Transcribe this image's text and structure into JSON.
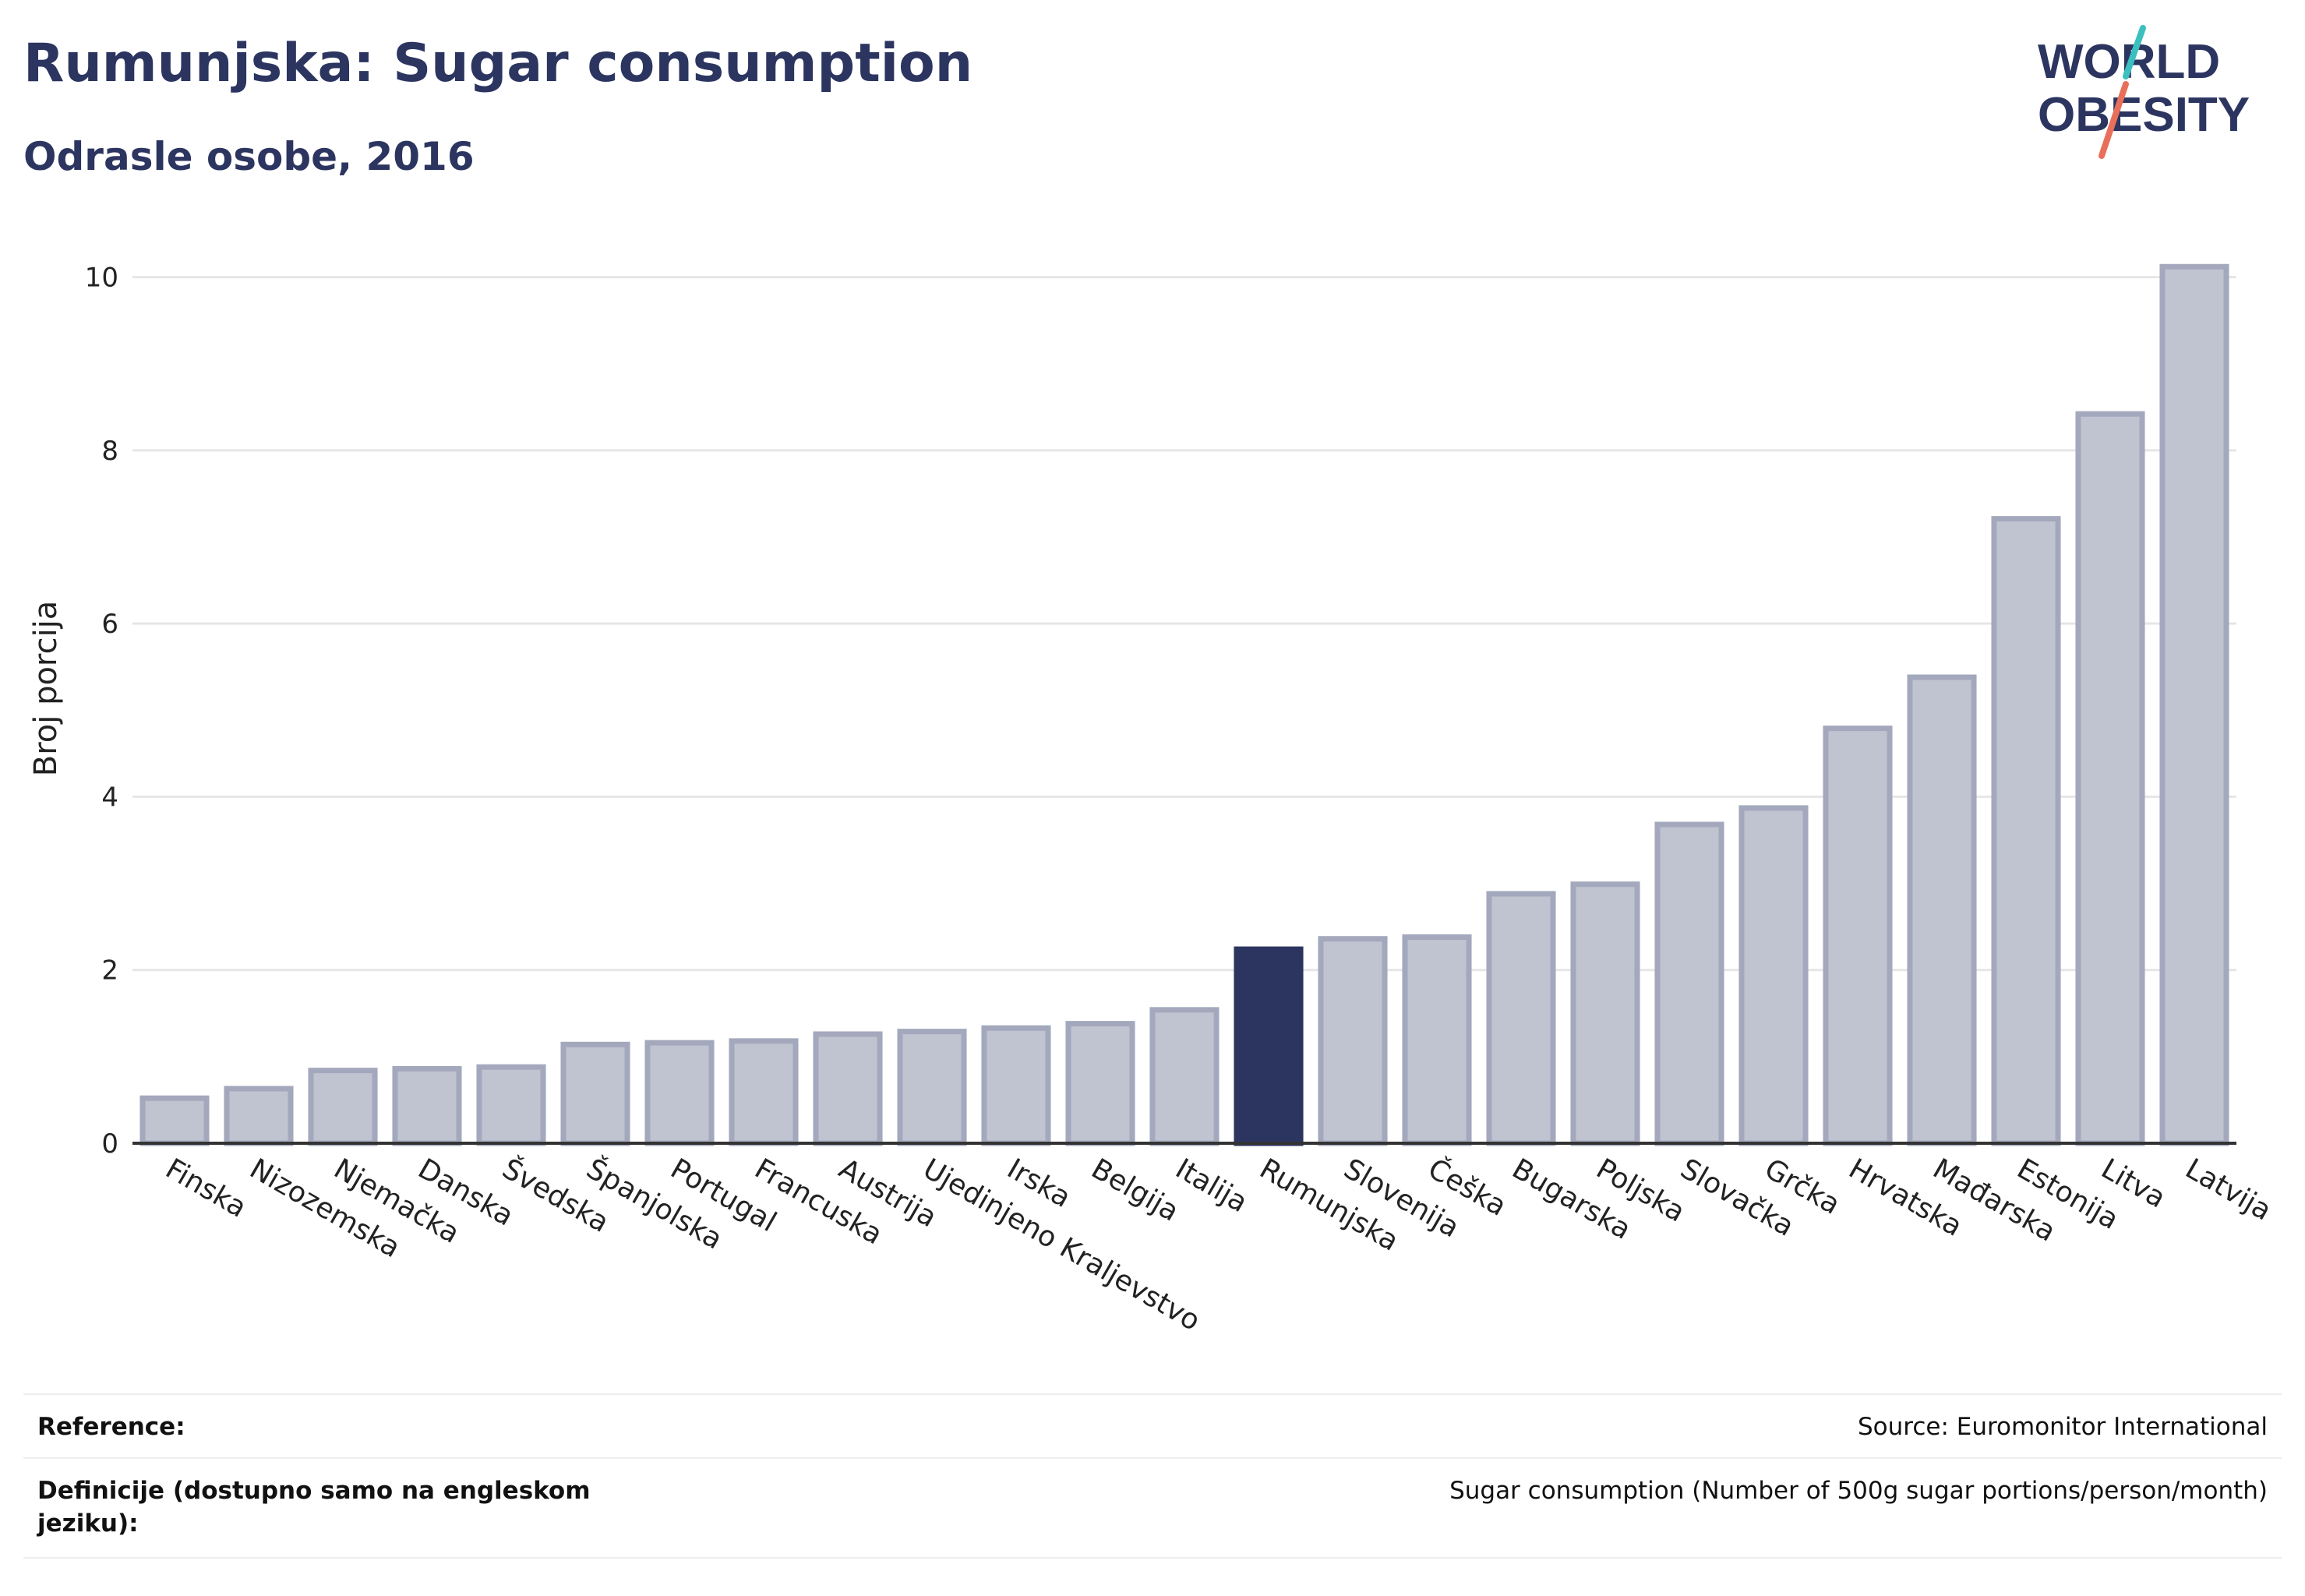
{
  "header": {
    "title": "Rumunjska: Sugar consumption",
    "subtitle": "Odrasle osobe, 2016"
  },
  "logo": {
    "line1": "WORLD",
    "line2": "OBESITY",
    "accent_colors": [
      "#3bbfbf",
      "#e8705a"
    ]
  },
  "chart_data": {
    "type": "bar",
    "title": "Rumunjska: Sugar consumption",
    "subtitle": "Odrasle osobe, 2016",
    "xlabel": "",
    "ylabel": "Broj porcija",
    "ylim": [
      0,
      10.5
    ],
    "yticks": [
      0,
      2,
      4,
      6,
      8,
      10
    ],
    "grid": true,
    "categories": [
      "Finska",
      "Nizozemska",
      "Njemačka",
      "Danska",
      "Švedska",
      "Španjolska",
      "Portugal",
      "Francuska",
      "Austrija",
      "Ujedinjeno Kraljevstvo",
      "Irska",
      "Belgija",
      "Italija",
      "Rumunjska",
      "Slovenija",
      "Češka",
      "Bugarska",
      "Poljska",
      "Slovačka",
      "Grčka",
      "Hrvatska",
      "Mađarska",
      "Estonija",
      "Litva",
      "Latvija"
    ],
    "values": [
      0.52,
      0.63,
      0.84,
      0.86,
      0.88,
      1.14,
      1.16,
      1.18,
      1.26,
      1.29,
      1.33,
      1.38,
      1.54,
      2.24,
      2.36,
      2.38,
      2.88,
      2.99,
      3.68,
      3.87,
      4.79,
      5.38,
      7.21,
      8.42,
      10.12
    ],
    "highlight": "Rumunjska",
    "colors": {
      "bar": "#c0c3d0",
      "bar_stroke": "#a3a8bd",
      "highlight": "#2c3560",
      "grid": "#e6e6e6",
      "axis": "#333333"
    }
  },
  "footer": {
    "reference_label": "Reference:",
    "reference_value": "Source: Euromonitor International",
    "definition_label": "Definicije (dostupno samo na engleskom jeziku):",
    "definition_value": "Sugar consumption (Number of 500g sugar portions/person/month)"
  }
}
